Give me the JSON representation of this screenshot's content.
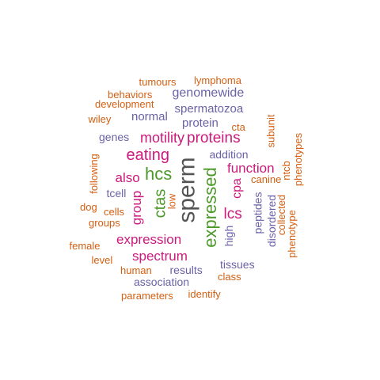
{
  "colors": {
    "grey": "#555555",
    "green": "#4d9a2a",
    "magenta": "#cc1a7c",
    "purple": "#6a62a8",
    "orange": "#d35f12"
  },
  "words": [
    {
      "text": "sperm",
      "color": "grey"
    },
    {
      "text": "expressed",
      "color": "green"
    },
    {
      "text": "hcs",
      "color": "green"
    },
    {
      "text": "ctas",
      "color": "green"
    },
    {
      "text": "eating",
      "color": "magenta"
    },
    {
      "text": "proteins",
      "color": "magenta"
    },
    {
      "text": "motility",
      "color": "magenta"
    },
    {
      "text": "function",
      "color": "magenta"
    },
    {
      "text": "lcs",
      "color": "magenta"
    },
    {
      "text": "expression",
      "color": "magenta"
    },
    {
      "text": "spectrum",
      "color": "magenta"
    },
    {
      "text": "also",
      "color": "magenta"
    },
    {
      "text": "group",
      "color": "magenta"
    },
    {
      "text": "cpa",
      "color": "magenta"
    },
    {
      "text": "genomewide",
      "color": "purple"
    },
    {
      "text": "spermatozoa",
      "color": "purple"
    },
    {
      "text": "normal",
      "color": "purple"
    },
    {
      "text": "protein",
      "color": "purple"
    },
    {
      "text": "genes",
      "color": "purple"
    },
    {
      "text": "addition",
      "color": "purple"
    },
    {
      "text": "tcell",
      "color": "purple"
    },
    {
      "text": "peptides",
      "color": "purple"
    },
    {
      "text": "disordered",
      "color": "purple"
    },
    {
      "text": "high",
      "color": "purple"
    },
    {
      "text": "tissues",
      "color": "purple"
    },
    {
      "text": "results",
      "color": "purple"
    },
    {
      "text": "association",
      "color": "purple"
    },
    {
      "text": "tumours",
      "color": "orange"
    },
    {
      "text": "lymphoma",
      "color": "orange"
    },
    {
      "text": "behaviors",
      "color": "orange"
    },
    {
      "text": "development",
      "color": "orange"
    },
    {
      "text": "wiley",
      "color": "orange"
    },
    {
      "text": "cta",
      "color": "orange"
    },
    {
      "text": "subunit",
      "color": "orange"
    },
    {
      "text": "phenotypes",
      "color": "orange"
    },
    {
      "text": "ntcb",
      "color": "orange"
    },
    {
      "text": "canine",
      "color": "orange"
    },
    {
      "text": "collected",
      "color": "orange"
    },
    {
      "text": "phenotype",
      "color": "orange"
    },
    {
      "text": "following",
      "color": "orange"
    },
    {
      "text": "low",
      "color": "orange"
    },
    {
      "text": "dog",
      "color": "orange"
    },
    {
      "text": "cells",
      "color": "orange"
    },
    {
      "text": "groups",
      "color": "orange"
    },
    {
      "text": "female",
      "color": "orange"
    },
    {
      "text": "level",
      "color": "orange"
    },
    {
      "text": "human",
      "color": "orange"
    },
    {
      "text": "class",
      "color": "orange"
    },
    {
      "text": "parameters",
      "color": "orange"
    },
    {
      "text": "identify",
      "color": "orange"
    }
  ]
}
